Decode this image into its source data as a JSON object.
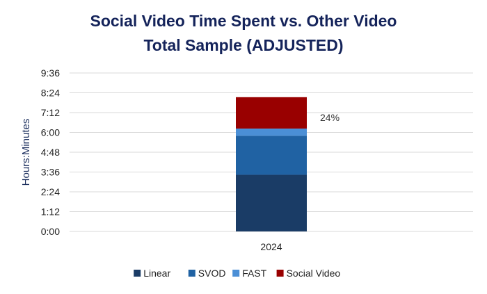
{
  "chart_data": {
    "type": "bar",
    "stacked": true,
    "title": "Social Video Time Spent vs. Other Video",
    "subtitle": "Total Sample (ADJUSTED)",
    "xlabel": "",
    "ylabel": "Hours:Minutes",
    "categories": [
      "2024"
    ],
    "ylim": [
      0,
      576
    ],
    "y_unit": "minutes",
    "yticks": [
      0,
      72,
      144,
      216,
      288,
      360,
      432,
      504,
      576
    ],
    "ytick_labels": [
      "0:00",
      "1:12",
      "2:24",
      "3:36",
      "4:48",
      "6:00",
      "7:12",
      "8:24",
      "9:36"
    ],
    "grid": true,
    "legend_position": "bottom",
    "series": [
      {
        "name": "Linear",
        "values": [
          206
        ],
        "color": "#1a3c66"
      },
      {
        "name": "SVOD",
        "values": [
          142
        ],
        "color": "#2062a3"
      },
      {
        "name": "FAST",
        "values": [
          26
        ],
        "color": "#4b8fd6"
      },
      {
        "name": "Social Video",
        "values": [
          114
        ],
        "color": "#990000"
      }
    ],
    "annotations": [
      {
        "text": "24%",
        "series": "Social Video",
        "category": "2024"
      }
    ]
  }
}
